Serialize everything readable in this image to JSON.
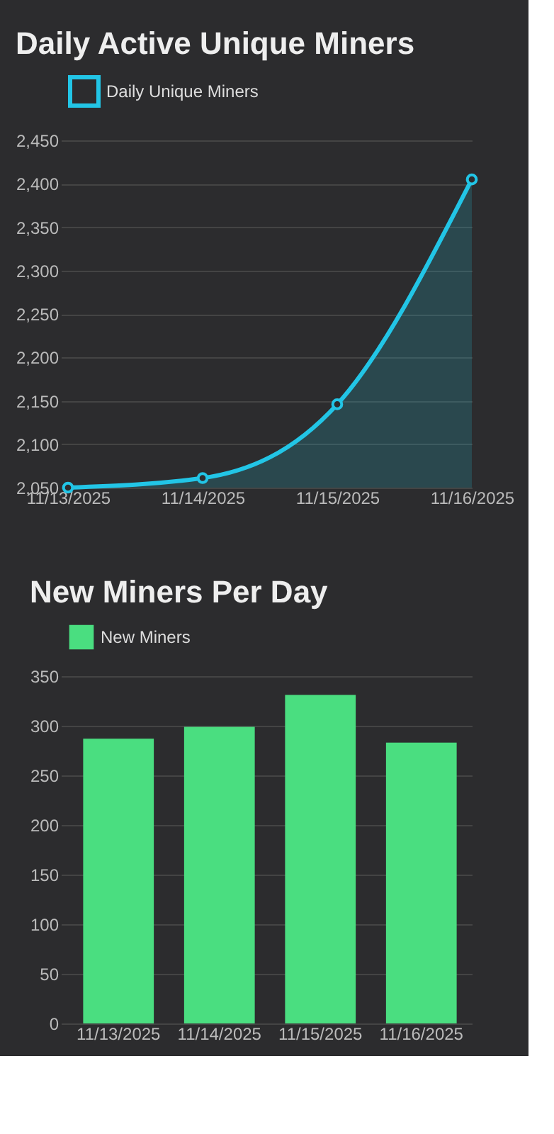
{
  "chart_data": [
    {
      "type": "area",
      "title": "Daily Active Unique Miners",
      "categories": [
        "11/13/2025",
        "11/14/2025",
        "11/15/2025",
        "11/16/2025"
      ],
      "series": [
        {
          "name": "Daily Unique Miners",
          "color": "#22c5e6",
          "values": [
            2050,
            2061,
            2146,
            2405
          ]
        }
      ],
      "ylim": [
        2050,
        2450
      ],
      "yticks": [
        {
          "value": 2050,
          "label": "2,050"
        },
        {
          "value": 2100,
          "label": "2,100"
        },
        {
          "value": 2150,
          "label": "2,150"
        },
        {
          "value": 2200,
          "label": "2,200"
        },
        {
          "value": 2250,
          "label": "2,250"
        },
        {
          "value": 2300,
          "label": "2,300"
        },
        {
          "value": 2350,
          "label": "2,350"
        },
        {
          "value": 2400,
          "label": "2,400"
        },
        {
          "value": 2450,
          "label": "2,450"
        }
      ],
      "grid": "y",
      "legend": "top",
      "marker": "circle",
      "line_style": "solid"
    },
    {
      "type": "bar",
      "title": "New Miners Per Day",
      "categories": [
        "11/13/2025",
        "11/14/2025",
        "11/15/2025",
        "11/16/2025"
      ],
      "series": [
        {
          "name": "New Miners",
          "color": "#4ade80",
          "values": [
            287,
            299,
            331,
            283
          ]
        }
      ],
      "ylim": [
        0,
        350
      ],
      "yticks": [
        0,
        50,
        100,
        150,
        200,
        250,
        300,
        350
      ],
      "grid": "y",
      "legend": "top"
    }
  ]
}
